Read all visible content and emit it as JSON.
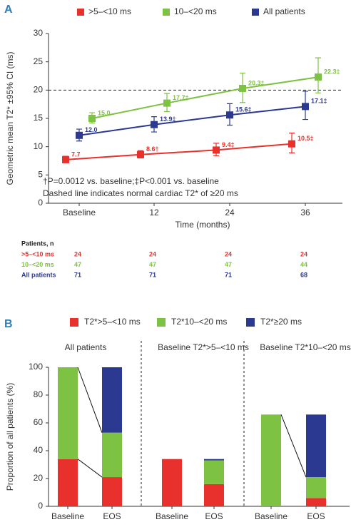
{
  "chart_data": [
    {
      "type": "line",
      "panel": "A",
      "xlabel": "Time (months)",
      "ylabel": "Geometric mean T2* ±95% CI (ms)",
      "categories": [
        "Baseline",
        "12",
        "24",
        "36"
      ],
      "ylim": [
        0,
        30
      ],
      "yticks": [
        0,
        5,
        10,
        15,
        20,
        25,
        30
      ],
      "reference_line": 20,
      "series": [
        {
          "name": ">5–<10 ms",
          "color": "#e8312d",
          "values": [
            7.7,
            8.6,
            9.4,
            10.5
          ],
          "value_labels": [
            "7.7",
            "8.6†",
            "9.4‡",
            "10.5‡"
          ],
          "lower": [
            7.2,
            8.0,
            8.4,
            8.9
          ],
          "upper": [
            8.3,
            9.3,
            10.6,
            12.4
          ]
        },
        {
          "name": "10–<20 ms",
          "color": "#7dc242",
          "values": [
            15.0,
            17.7,
            20.3,
            22.3
          ],
          "value_labels": [
            "15.0",
            "17.7‡",
            "20.3‡",
            "22.3‡"
          ],
          "lower": [
            14.2,
            16.2,
            17.8,
            19.5
          ],
          "upper": [
            16.0,
            19.4,
            23.0,
            25.7
          ]
        },
        {
          "name": "All patients",
          "color": "#2b3990",
          "values": [
            12.0,
            13.9,
            15.6,
            17.1
          ],
          "value_labels": [
            "12.0",
            "13.9‡",
            "15.6‡",
            "17.1‡"
          ],
          "lower": [
            11.0,
            12.6,
            13.8,
            14.8
          ],
          "upper": [
            13.1,
            15.3,
            17.6,
            19.8
          ]
        }
      ],
      "annotations": [
        "†P=0.0012 vs. baseline;‡P<0.001 vs. baseline",
        "Dashed line indicates normal cardiac T2* of ≥20 ms"
      ],
      "patients_table": {
        "title": "Patients, n",
        "rows": [
          {
            "label": ">5–<10 ms",
            "counts": [
              24,
              24,
              24,
              24
            ]
          },
          {
            "label": "10–<20 ms",
            "counts": [
              47,
              47,
              47,
              44
            ]
          },
          {
            "label": "All patients",
            "counts": [
              71,
              71,
              71,
              68
            ]
          }
        ]
      }
    },
    {
      "type": "stacked_bar",
      "panel": "B",
      "ylabel": "Proportion of all patients (%)",
      "groups": [
        "All patients",
        "Baseline T2*>5–<10 ms",
        "Baseline T2*10–<20 ms"
      ],
      "categories": [
        "Baseline",
        "EOS",
        "Baseline",
        "EOS",
        "Baseline",
        "EOS"
      ],
      "ylim": [
        0,
        100
      ],
      "yticks": [
        0,
        20,
        40,
        60,
        80,
        100
      ],
      "series": [
        {
          "name": "T2*>5–<10 ms",
          "color": "#e8312d",
          "values": [
            34,
            21,
            34,
            16,
            0,
            6
          ]
        },
        {
          "name": "T2*10–<20 ms",
          "color": "#7dc242",
          "values": [
            66,
            32,
            0,
            17,
            66,
            15
          ]
        },
        {
          "name": "T2*≥20 ms",
          "color": "#2b3990",
          "values": [
            0,
            47,
            0,
            1,
            0,
            45
          ]
        }
      ]
    }
  ]
}
